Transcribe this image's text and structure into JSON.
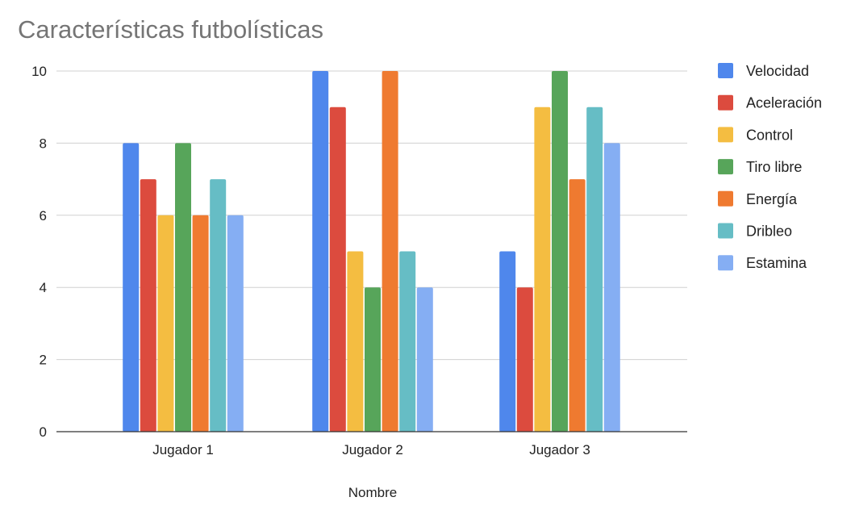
{
  "chart_data": {
    "type": "bar",
    "title": "Características futbolísticas",
    "xlabel": "Nombre",
    "ylabel": "",
    "ylim": [
      0,
      10
    ],
    "yticks": [
      0,
      2,
      4,
      6,
      8,
      10
    ],
    "grid": true,
    "legend_position": "right",
    "categories": [
      "Jugador 1",
      "Jugador 2",
      "Jugador 3"
    ],
    "series": [
      {
        "name": "Velocidad",
        "color": "#4f87ec",
        "values": [
          8,
          10,
          5
        ]
      },
      {
        "name": "Aceleración",
        "color": "#dc4b3e",
        "values": [
          7,
          9,
          4
        ]
      },
      {
        "name": "Control",
        "color": "#f4bd41",
        "values": [
          6,
          5,
          9
        ]
      },
      {
        "name": "Tiro libre",
        "color": "#57a55a",
        "values": [
          8,
          4,
          10
        ]
      },
      {
        "name": "Energía",
        "color": "#ef7a30",
        "values": [
          6,
          10,
          7
        ]
      },
      {
        "name": "Dribleo",
        "color": "#66bdc5",
        "values": [
          7,
          5,
          9
        ]
      },
      {
        "name": "Estamina",
        "color": "#85aef3",
        "values": [
          6,
          4,
          8
        ]
      }
    ]
  }
}
